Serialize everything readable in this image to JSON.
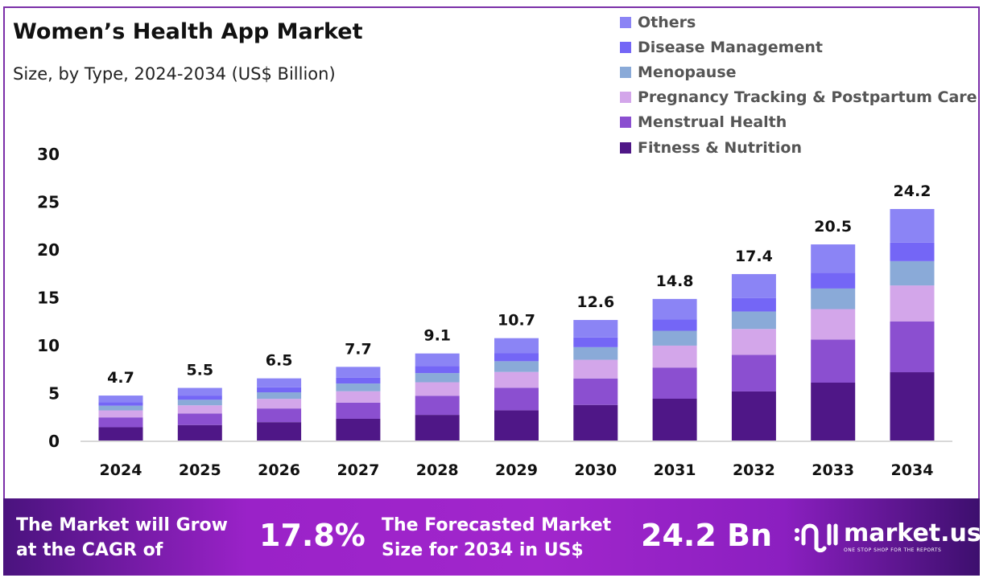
{
  "chart_data": {
    "type": "bar",
    "stacked": true,
    "title": "Women’s Health App Market",
    "subtitle": "Size, by Type, 2024-2034 (US$ Billion)",
    "xlabel": "",
    "ylabel": "",
    "ylim": [
      0,
      30
    ],
    "yticks": [
      0,
      5,
      10,
      15,
      20,
      25,
      30
    ],
    "grid": false,
    "legend_position": "top-right",
    "categories": [
      "2024",
      "2025",
      "2026",
      "2027",
      "2028",
      "2029",
      "2030",
      "2031",
      "2032",
      "2033",
      "2034"
    ],
    "totals": [
      4.7,
      5.5,
      6.5,
      7.7,
      9.1,
      10.7,
      12.6,
      14.8,
      17.4,
      20.5,
      24.2
    ],
    "series": [
      {
        "name": "Fitness & Nutrition",
        "color": "#4f1787",
        "values": [
          1.39,
          1.62,
          1.92,
          2.27,
          2.68,
          3.16,
          3.72,
          4.37,
          5.13,
          6.05,
          7.14
        ]
      },
      {
        "name": "Menstrual Health",
        "color": "#8b4fd0",
        "values": [
          1.03,
          1.21,
          1.43,
          1.69,
          2.0,
          2.35,
          2.77,
          3.26,
          3.83,
          4.51,
          5.32
        ]
      },
      {
        "name": "Pregnancy Tracking & Postpartum Care",
        "color": "#d3a6ea",
        "values": [
          0.73,
          0.85,
          1.01,
          1.19,
          1.41,
          1.66,
          1.95,
          2.29,
          2.7,
          3.18,
          3.75
        ]
      },
      {
        "name": "Menopause",
        "color": "#8aaad8",
        "values": [
          0.49,
          0.58,
          0.68,
          0.81,
          0.96,
          1.12,
          1.32,
          1.55,
          1.83,
          2.15,
          2.54
        ]
      },
      {
        "name": "Disease Management",
        "color": "#7466f6",
        "values": [
          0.38,
          0.44,
          0.52,
          0.62,
          0.73,
          0.86,
          1.01,
          1.18,
          1.39,
          1.64,
          1.94
        ]
      },
      {
        "name": "Others",
        "color": "#8b84f5",
        "values": [
          0.68,
          0.8,
          0.94,
          1.12,
          1.32,
          1.55,
          1.83,
          2.15,
          2.52,
          2.97,
          3.51
        ]
      }
    ]
  },
  "footer": {
    "cagr_label_1": "The Market will Grow",
    "cagr_label_2": "at the CAGR of",
    "cagr_value": "17.8%",
    "forecast_label_1": "The Forecasted Market",
    "forecast_label_2": "Size for 2034 in US$",
    "forecast_value": "24.2 Bn",
    "logo_name": "market.us",
    "logo_tagline": "ONE STOP SHOP FOR THE REPORTS"
  }
}
